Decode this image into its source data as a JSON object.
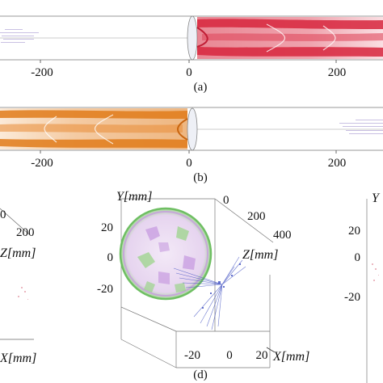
{
  "panel_a": {
    "label": "(a)",
    "ticks": [
      "-200",
      "0",
      "200"
    ],
    "colors": {
      "beam": "#d7263d",
      "beam_light": "#f4a5b0",
      "faint": "#9c8fc8"
    }
  },
  "panel_b": {
    "label": "(b)",
    "ticks": [
      "-200",
      "0",
      "200"
    ],
    "colors": {
      "beam": "#e07b1a",
      "beam_light": "#f5c18e",
      "faint": "#9c8fc8"
    }
  },
  "panel_c": {
    "z_ticks": [
      "0",
      "200"
    ],
    "z_label": "Z[mm]",
    "x_label": "X[mm]"
  },
  "panel_d": {
    "label": "(d)",
    "y_label": "Y[mm]",
    "z_label": "Z[mm]",
    "x_label": "X[mm]",
    "y_ticks": [
      "20",
      "0",
      "-20"
    ],
    "z_ticks": [
      "0",
      "200",
      "400"
    ],
    "x_ticks": [
      "-20",
      "0",
      "20"
    ],
    "colors": {
      "disk_green": "#9bd48a",
      "disk_purple": "#c79be0",
      "rays": "#3b4cc0"
    }
  },
  "panel_e": {
    "y_label": "Y"
  }
}
